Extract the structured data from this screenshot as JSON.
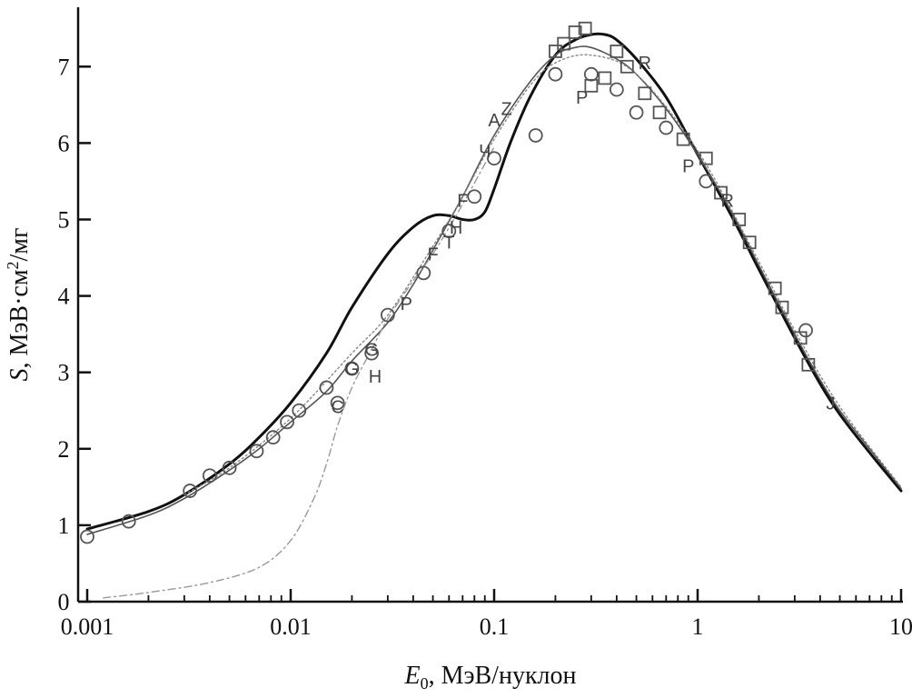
{
  "chart_data": {
    "type": "line",
    "xscale": "log",
    "xlim": [
      0.001,
      10
    ],
    "ylim": [
      0,
      7.6
    ],
    "grid": false,
    "xlabel": {
      "symbol": "E",
      "subscript": "0",
      "rest": ", МэВ/нуклон"
    },
    "ylabel": {
      "symbol": "S",
      "rest": ", МэВ·см",
      "sup": "2",
      "tail": "/мг"
    },
    "xticks": [
      {
        "value": 0.001,
        "label": "0.001"
      },
      {
        "value": 0.01,
        "label": "0.01"
      },
      {
        "value": 0.1,
        "label": "0.1"
      },
      {
        "value": 1,
        "label": "1"
      },
      {
        "value": 10,
        "label": "10"
      }
    ],
    "yticks": [
      {
        "value": 0,
        "label": "0"
      },
      {
        "value": 1,
        "label": "1"
      },
      {
        "value": 2,
        "label": "2"
      },
      {
        "value": 3,
        "label": "3"
      },
      {
        "value": 4,
        "label": "4"
      },
      {
        "value": 5,
        "label": "5"
      },
      {
        "value": 6,
        "label": "6"
      },
      {
        "value": 7,
        "label": "7"
      }
    ],
    "series": [
      {
        "style": "solid-thick",
        "color": "#111111",
        "x": [
          0.001,
          0.002,
          0.003,
          0.005,
          0.007,
          0.01,
          0.015,
          0.02,
          0.03,
          0.04,
          0.05,
          0.06,
          0.07,
          0.08,
          0.09,
          0.1,
          0.12,
          0.15,
          0.2,
          0.25,
          0.3,
          0.35,
          0.4,
          0.5,
          0.7,
          1,
          1.5,
          2,
          3,
          4,
          5,
          7,
          10
        ],
        "y": [
          0.95,
          1.18,
          1.4,
          1.8,
          2.15,
          2.6,
          3.25,
          3.85,
          4.55,
          4.9,
          5.05,
          5.05,
          5.0,
          5.0,
          5.1,
          5.4,
          6.0,
          6.6,
          7.15,
          7.35,
          7.42,
          7.42,
          7.35,
          7.1,
          6.6,
          5.85,
          5.0,
          4.35,
          3.45,
          2.85,
          2.45,
          1.95,
          1.45
        ]
      },
      {
        "style": "solid-thin",
        "color": "#555555",
        "x": [
          0.001,
          0.002,
          0.003,
          0.005,
          0.007,
          0.01,
          0.015,
          0.02,
          0.03,
          0.04,
          0.05,
          0.07,
          0.1,
          0.15,
          0.2,
          0.25,
          0.3,
          0.4,
          0.5,
          0.7,
          1,
          1.5,
          2,
          3,
          4,
          5,
          7,
          10
        ],
        "y": [
          0.88,
          1.13,
          1.35,
          1.72,
          2.0,
          2.35,
          2.75,
          3.15,
          3.65,
          4.15,
          4.6,
          5.3,
          6.1,
          6.8,
          7.15,
          7.25,
          7.25,
          7.1,
          6.9,
          6.45,
          5.85,
          5.05,
          4.4,
          3.5,
          2.9,
          2.5,
          2.0,
          1.48
        ]
      },
      {
        "style": "dotted",
        "color": "#888888",
        "x": [
          0.003,
          0.005,
          0.01,
          0.02,
          0.03,
          0.05,
          0.07,
          0.1,
          0.15,
          0.2,
          0.3,
          0.5,
          1,
          2,
          3,
          5,
          10
        ],
        "y": [
          1.4,
          1.75,
          2.4,
          3.25,
          3.75,
          4.65,
          5.3,
          6.05,
          6.75,
          7.05,
          7.15,
          6.9,
          5.9,
          4.45,
          3.55,
          2.55,
          1.5
        ]
      },
      {
        "style": "dashdot",
        "color": "#999999",
        "x": [
          0.0012,
          0.002,
          0.004,
          0.007,
          0.01,
          0.013,
          0.015,
          0.017,
          0.02,
          0.025,
          0.03,
          0.04,
          0.05,
          0.07,
          0.1
        ],
        "y": [
          0.05,
          0.12,
          0.25,
          0.45,
          0.8,
          1.35,
          1.8,
          2.3,
          2.8,
          3.3,
          3.7,
          4.2,
          4.55,
          5.2,
          5.95
        ]
      }
    ],
    "markers": {
      "circles": [
        [
          0.001,
          0.85
        ],
        [
          0.0016,
          1.05
        ],
        [
          0.0032,
          1.45
        ],
        [
          0.004,
          1.65
        ],
        [
          0.005,
          1.75
        ],
        [
          0.0068,
          1.97
        ],
        [
          0.0082,
          2.15
        ],
        [
          0.0096,
          2.35
        ],
        [
          0.011,
          2.5
        ],
        [
          0.015,
          2.8
        ],
        [
          0.017,
          2.6
        ],
        [
          0.02,
          3.05
        ],
        [
          0.025,
          3.25
        ],
        [
          0.03,
          3.75
        ],
        [
          0.045,
          4.3
        ],
        [
          0.06,
          4.85
        ],
        [
          0.08,
          5.3
        ],
        [
          0.1,
          5.8
        ],
        [
          0.16,
          6.1
        ],
        [
          0.2,
          6.9
        ],
        [
          0.3,
          6.9
        ],
        [
          0.4,
          6.7
        ],
        [
          0.5,
          6.4
        ],
        [
          0.7,
          6.2
        ],
        [
          1.1,
          5.5
        ],
        [
          3.4,
          3.55
        ]
      ],
      "squares": [
        [
          0.2,
          7.2
        ],
        [
          0.22,
          7.3
        ],
        [
          0.25,
          7.45
        ],
        [
          0.28,
          7.5
        ],
        [
          0.3,
          6.75
        ],
        [
          0.35,
          6.85
        ],
        [
          0.4,
          7.2
        ],
        [
          0.45,
          7.0
        ],
        [
          0.55,
          6.65
        ],
        [
          0.65,
          6.4
        ],
        [
          0.85,
          6.05
        ],
        [
          1.1,
          5.8
        ],
        [
          1.3,
          5.35
        ],
        [
          1.6,
          5.0
        ],
        [
          1.8,
          4.7
        ],
        [
          2.4,
          4.1
        ],
        [
          2.6,
          3.85
        ],
        [
          3.2,
          3.45
        ],
        [
          3.5,
          3.1
        ]
      ],
      "letters": [
        {
          "t": "C",
          "x": 0.017,
          "y": 2.55
        },
        {
          "t": "G",
          "x": 0.02,
          "y": 3.05
        },
        {
          "t": "G",
          "x": 0.025,
          "y": 3.3
        },
        {
          "t": "H",
          "x": 0.026,
          "y": 2.95
        },
        {
          "t": "P",
          "x": 0.037,
          "y": 3.9
        },
        {
          "t": "F",
          "x": 0.05,
          "y": 4.55
        },
        {
          "t": "T",
          "x": 0.06,
          "y": 4.7
        },
        {
          "t": "H",
          "x": 0.065,
          "y": 4.9
        },
        {
          "t": "F",
          "x": 0.07,
          "y": 5.25
        },
        {
          "t": "Ч",
          "x": 0.09,
          "y": 5.9
        },
        {
          "t": "A",
          "x": 0.1,
          "y": 6.3
        },
        {
          "t": "Z",
          "x": 0.115,
          "y": 6.45
        },
        {
          "t": "P",
          "x": 0.27,
          "y": 6.6
        },
        {
          "t": "R",
          "x": 0.55,
          "y": 7.05
        },
        {
          "t": "P",
          "x": 0.9,
          "y": 5.7
        },
        {
          "t": "R",
          "x": 1.4,
          "y": 5.25
        },
        {
          "t": "J",
          "x": 4.5,
          "y": 2.6
        }
      ]
    }
  }
}
